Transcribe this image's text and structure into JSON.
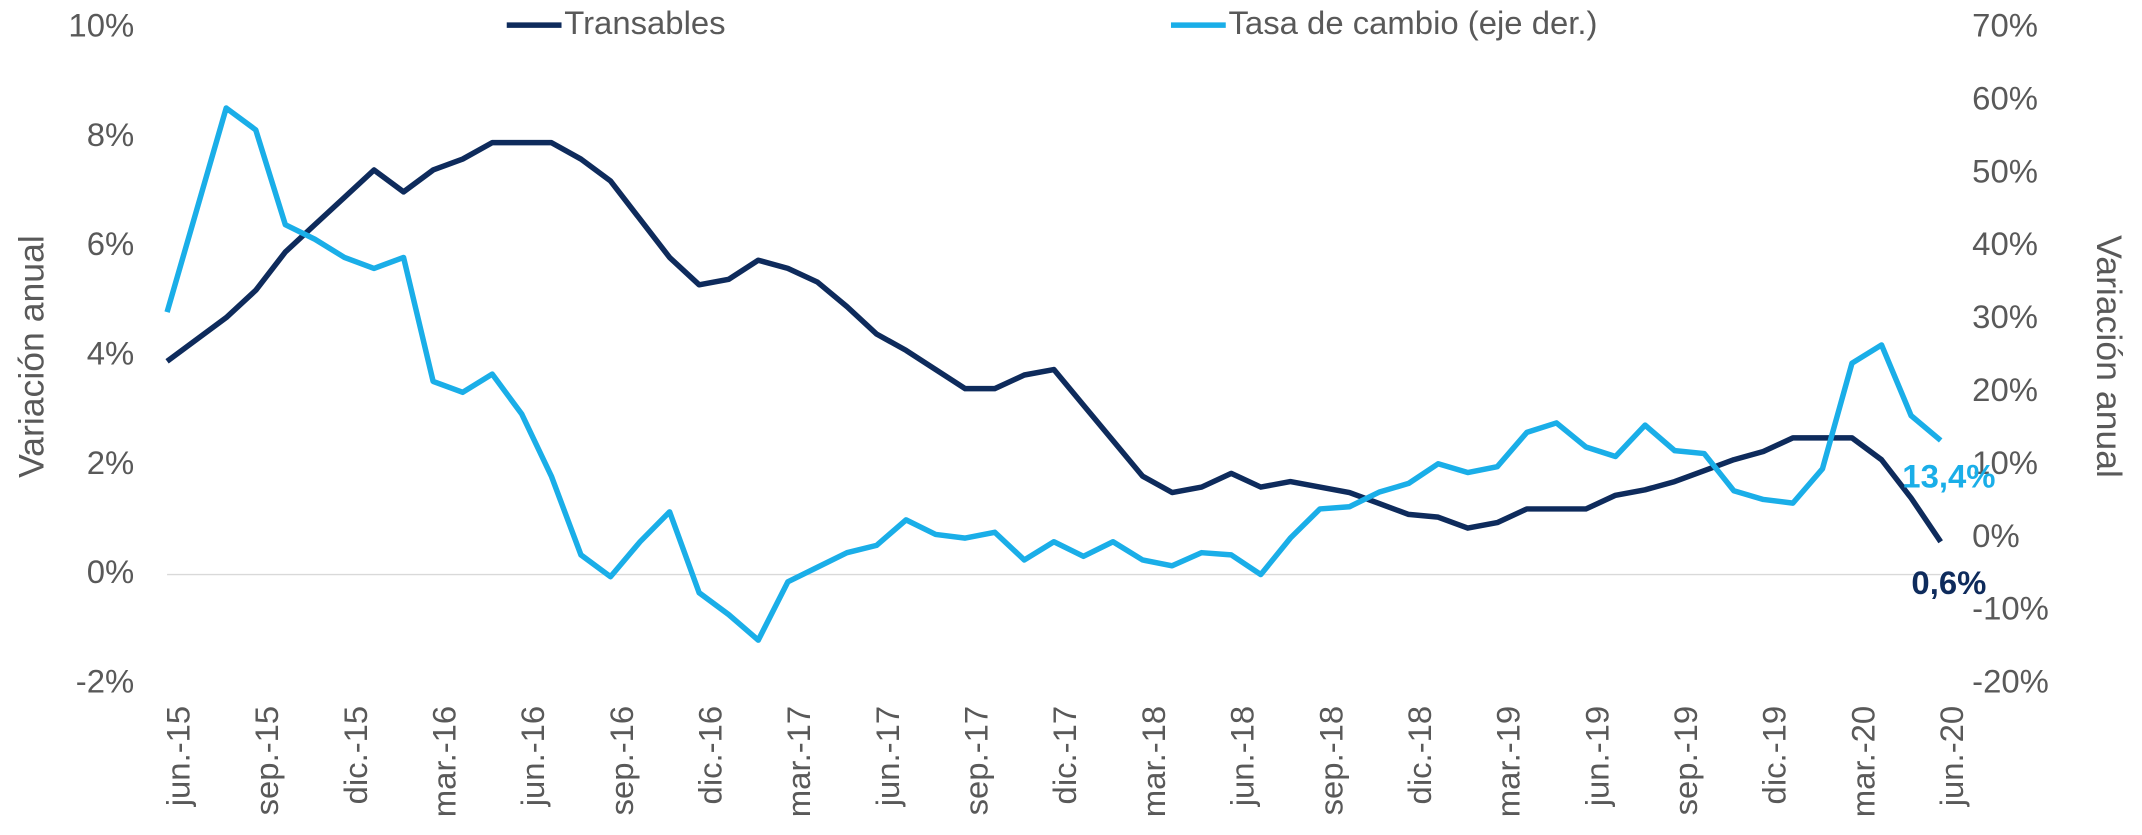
{
  "chart_data": {
    "type": "line",
    "y_label": "Variación anual",
    "y2_label": "Variación anual",
    "categories": [
      "jun.-15",
      null,
      null,
      "sep.-15",
      null,
      null,
      "dic.-15",
      null,
      null,
      "mar.-16",
      null,
      null,
      "jun.-16",
      null,
      null,
      "sep.-16",
      null,
      null,
      "dic.-16",
      null,
      null,
      "mar.-17",
      null,
      null,
      "jun.-17",
      null,
      null,
      "sep.-17",
      null,
      null,
      "dic.-17",
      null,
      null,
      "mar.-18",
      null,
      null,
      "jun.-18",
      null,
      null,
      "sep.-18",
      null,
      null,
      "dic.-18",
      null,
      null,
      "mar.-19",
      null,
      null,
      "jun.-19",
      null,
      null,
      "sep.-19",
      null,
      null,
      "dic.-19",
      null,
      null,
      "mar.-20",
      null,
      null,
      "jun.-20"
    ],
    "series": [
      {
        "name": "Transables",
        "color": "#0e2b5c",
        "values": [
          3.9,
          4.3,
          4.7,
          5.2,
          5.9,
          6.4,
          6.9,
          7.4,
          7.0,
          7.4,
          7.6,
          7.9,
          7.9,
          7.9,
          7.6,
          7.2,
          6.5,
          5.8,
          5.3,
          5.4,
          5.75,
          5.6,
          5.35,
          4.9,
          4.4,
          4.1,
          3.75,
          3.4,
          3.4,
          3.65,
          3.75,
          3.1,
          2.45,
          1.8,
          1.5,
          1.6,
          1.85,
          1.6,
          1.7,
          1.6,
          1.5,
          1.3,
          1.1,
          1.05,
          0.85,
          0.95,
          1.2,
          1.2,
          1.2,
          1.45,
          1.55,
          1.7,
          1.9,
          2.1,
          2.25,
          2.5,
          2.5,
          2.5,
          2.1,
          1.4,
          0.6
        ],
        "value_labels": [
          null,
          null,
          null,
          null,
          null,
          null,
          null,
          null,
          null,
          null,
          null,
          null,
          null,
          null,
          null,
          null,
          null,
          null,
          null,
          null,
          null,
          null,
          null,
          null,
          null,
          null,
          null,
          null,
          null,
          null,
          null,
          null,
          null,
          null,
          null,
          null,
          null,
          null,
          null,
          null,
          null,
          null,
          null,
          null,
          null,
          null,
          null,
          null,
          null,
          null,
          null,
          null,
          null,
          null,
          null,
          null,
          null,
          null,
          null,
          null,
          "0,6%"
        ]
      },
      {
        "name": "Tasa de cambio (eje der.)",
        "color": "#1aaee8",
        "axis": "y2",
        "values": [
          31,
          45,
          59,
          56,
          43,
          41,
          38.5,
          37,
          38.5,
          21.5,
          20,
          22.5,
          17,
          8.5,
          -2.3,
          -5.3,
          -0.5,
          3.6,
          -7.5,
          -10.5,
          -14,
          -6,
          -4,
          -2,
          -1,
          2.5,
          0.5,
          0,
          0.8,
          -3,
          -0.5,
          -2.5,
          -0.5,
          -3,
          -3.8,
          -2,
          -2.3,
          -5,
          0,
          4,
          4.3,
          6.3,
          7.5,
          10.2,
          9,
          9.8,
          14.5,
          15.8,
          12.5,
          11.2,
          15.5,
          12,
          11.6,
          6.5,
          5.3,
          4.8,
          9.5,
          24,
          26.5,
          16.8,
          13.4
        ],
        "value_labels": [
          null,
          null,
          null,
          null,
          null,
          null,
          null,
          null,
          null,
          null,
          null,
          null,
          null,
          null,
          null,
          null,
          null,
          null,
          null,
          null,
          null,
          null,
          null,
          null,
          null,
          null,
          null,
          null,
          null,
          null,
          null,
          null,
          null,
          null,
          null,
          null,
          null,
          null,
          null,
          null,
          null,
          null,
          null,
          null,
          null,
          null,
          null,
          null,
          null,
          null,
          null,
          null,
          null,
          null,
          null,
          null,
          null,
          null,
          null,
          null,
          "13,4%"
        ]
      }
    ],
    "ylim": [
      -2,
      10
    ],
    "yticks": [
      {
        "value": -2,
        "label": "-2%"
      },
      {
        "value": 0,
        "label": "0%"
      },
      {
        "value": 2,
        "label": "2%"
      },
      {
        "value": 4,
        "label": "4%"
      },
      {
        "value": 6,
        "label": "6%"
      },
      {
        "value": 8,
        "label": "8%"
      },
      {
        "value": 10,
        "label": "10%"
      }
    ],
    "y2lim": [
      -20,
      70
    ],
    "y2ticks": [
      {
        "value": -20,
        "label": "-20%"
      },
      {
        "value": -10,
        "label": "-10%"
      },
      {
        "value": 0,
        "label": "0%"
      },
      {
        "value": 10,
        "label": "10%"
      },
      {
        "value": 20,
        "label": "20%"
      },
      {
        "value": 30,
        "label": "30%"
      },
      {
        "value": 40,
        "label": "40%"
      },
      {
        "value": 50,
        "label": "50%"
      },
      {
        "value": 60,
        "label": "60%"
      },
      {
        "value": 70,
        "label": "70%"
      }
    ],
    "grid": false,
    "legend": "top"
  }
}
